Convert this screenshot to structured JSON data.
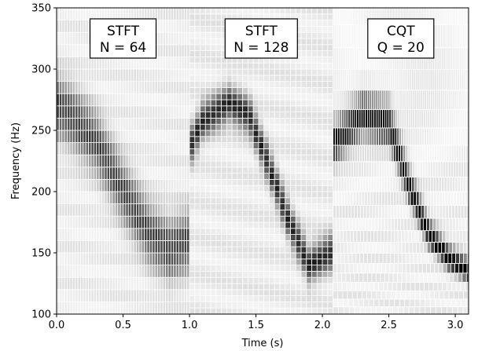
{
  "chart_data": {
    "type": "heatmap",
    "title": "",
    "xlabel": "Time (s)",
    "ylabel": "Frequency (Hz)",
    "xlim": [
      0.0,
      3.1
    ],
    "ylim": [
      100,
      350
    ],
    "xticks": [
      0.0,
      0.5,
      1.0,
      1.5,
      2.0,
      2.5,
      3.0
    ],
    "yticks": [
      100,
      150,
      200,
      250,
      300,
      350
    ],
    "xtick_labels": [
      "0.0",
      "0.5",
      "1.0",
      "1.5",
      "2.0",
      "2.5",
      "3.0"
    ],
    "ytick_labels": [
      "100",
      "150",
      "200",
      "250",
      "300",
      "350"
    ],
    "colormap": "gray_r",
    "grid": false,
    "panels": [
      {
        "label_line1": "STFT",
        "label_line2": "N = 64",
        "t_start": 0.0,
        "t_end": 1.0,
        "freq_bin_hz": 10,
        "time_bin_s": 0.02,
        "ridge": [
          [
            0.0,
            270
          ],
          [
            0.1,
            262
          ],
          [
            0.3,
            240
          ],
          [
            0.5,
            200
          ],
          [
            0.7,
            165
          ],
          [
            0.85,
            152
          ],
          [
            1.0,
            160
          ]
        ],
        "peak_intensity": 0.7
      },
      {
        "label_line1": "STFT",
        "label_line2": "N = 128",
        "t_start": 1.0,
        "t_end": 2.08,
        "freq_bin_hz": 5,
        "time_bin_s": 0.04,
        "ridge": [
          [
            1.0,
            235
          ],
          [
            1.1,
            258
          ],
          [
            1.3,
            272
          ],
          [
            1.45,
            262
          ],
          [
            1.6,
            220
          ],
          [
            1.75,
            175
          ],
          [
            1.9,
            140
          ],
          [
            2.05,
            150
          ]
        ],
        "peak_intensity": 0.8
      },
      {
        "label_line1": "CQT",
        "label_line2": "Q = 20",
        "t_start": 2.08,
        "t_end": 3.1,
        "Q": 20,
        "ridge": [
          [
            2.1,
            240
          ],
          [
            2.3,
            262
          ],
          [
            2.5,
            255
          ],
          [
            2.65,
            205
          ],
          [
            2.8,
            165
          ],
          [
            2.95,
            145
          ],
          [
            3.1,
            135
          ]
        ],
        "peak_intensity": 1.0
      }
    ]
  }
}
